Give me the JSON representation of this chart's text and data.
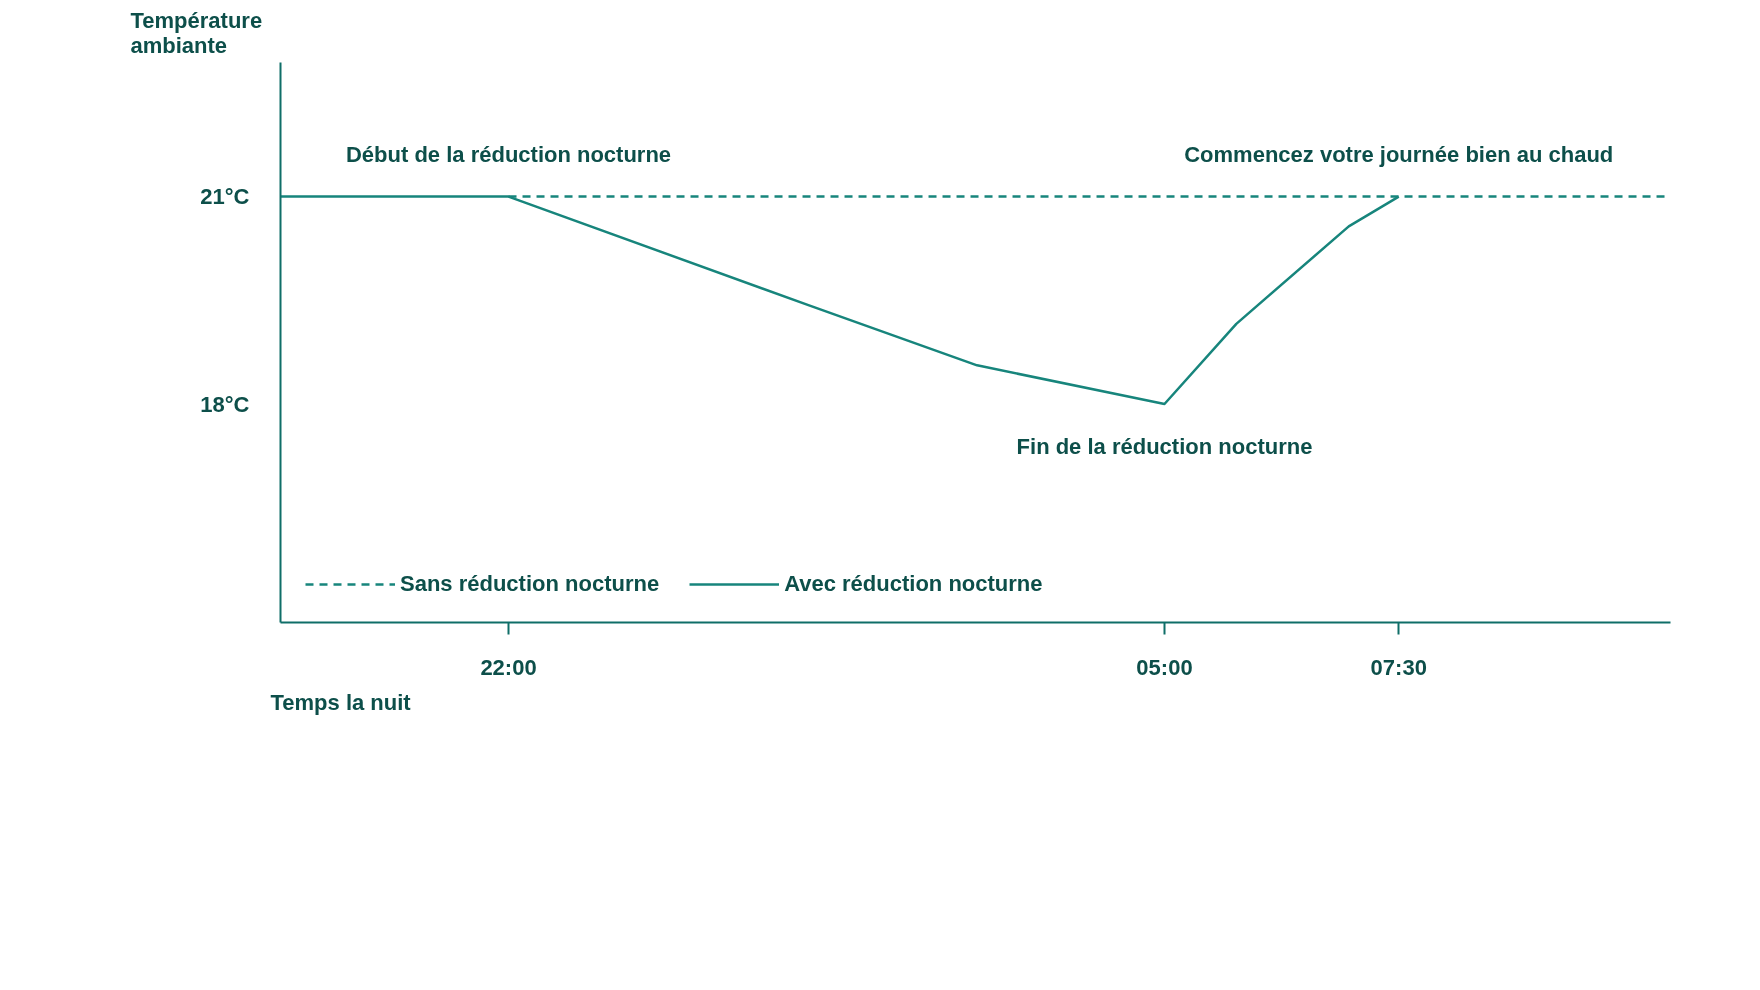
{
  "chart_data": {
    "type": "line",
    "xlabel": "Temps la nuit",
    "ylabel": "Température\nambiante",
    "xlim": [
      "2000-01-01T19:34",
      "2000-01-02T10:24"
    ],
    "ylim": [
      14.84,
      22.94
    ],
    "xticks": [
      {
        "value": "2000-01-01T22:00",
        "label": "22:00"
      },
      {
        "value": "2000-01-02T05:00",
        "label": "05:00"
      },
      {
        "value": "2000-01-02T07:30",
        "label": "07:30"
      }
    ],
    "yticks": [
      {
        "value": 18,
        "label": "18°C"
      },
      {
        "value": 21,
        "label": "21°C"
      }
    ],
    "grid": false,
    "legend": "bottom",
    "series": [
      {
        "name": "Sans réduction nocturne",
        "color": "#17857c",
        "line_style": "dashed",
        "x": [
          "2000-01-01T22:00",
          "2000-01-02T10:24"
        ],
        "values": [
          21,
          21
        ]
      },
      {
        "name": "Avec réduction nocturne",
        "color": "#17857c",
        "line_style": "solid",
        "x": [
          "2000-01-01T19:34",
          "2000-01-01T22:00",
          "2000-01-02T01:12",
          "2000-01-02T03:00",
          "2000-01-02T05:00",
          "2000-01-02T05:46",
          "2000-01-02T06:58",
          "2000-01-02T07:30"
        ],
        "values": [
          21,
          21,
          19.43,
          18.56,
          18,
          19.16,
          20.57,
          21
        ]
      }
    ],
    "annotations": [
      {
        "text": "Début de la réduction nocturne",
        "x": "2000-01-01T22:00",
        "y": 21
      },
      {
        "text": "Fin de la réduction nocturne",
        "x": "2000-01-02T05:00",
        "y": 18
      },
      {
        "text": "Commencez votre journée bien au chaud",
        "x": "2000-01-02T07:30",
        "y": 21
      }
    ]
  }
}
